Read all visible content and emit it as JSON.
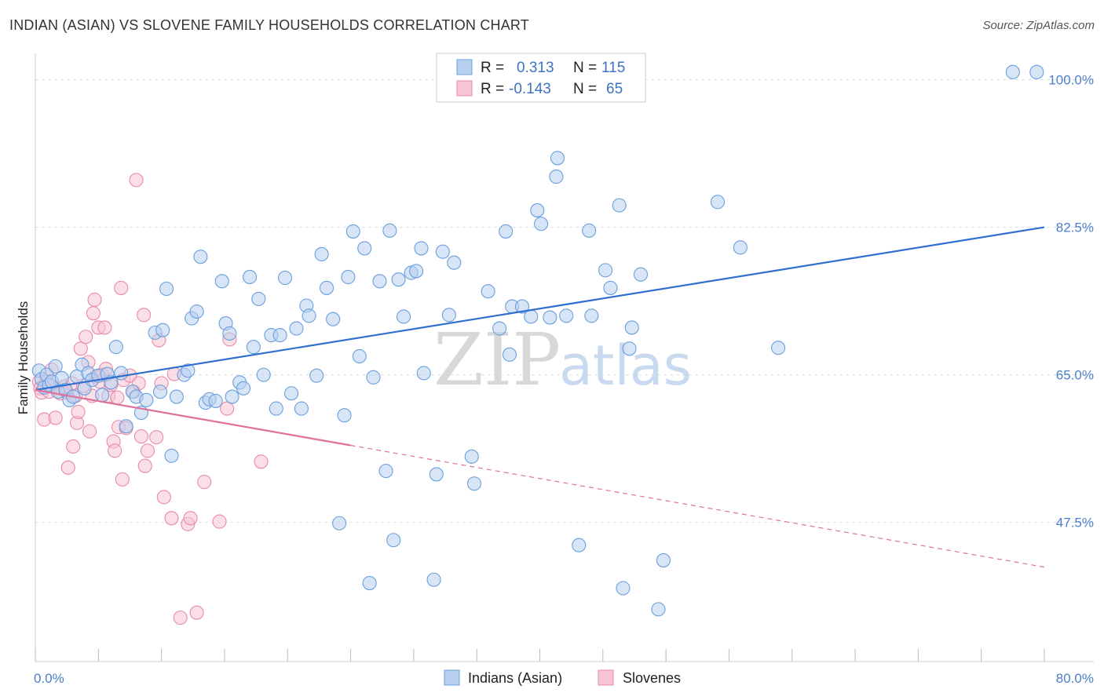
{
  "title": "INDIAN (ASIAN) VS SLOVENE FAMILY HOUSEHOLDS CORRELATION CHART",
  "source": "Source: ZipAtlas.com",
  "watermark": {
    "zip": "ZIP",
    "atlas": "atlas"
  },
  "colors": {
    "blue_fill": "#b8d0f0",
    "blue_stroke": "#6a9fdc",
    "blue_line": "#2f6fcf",
    "pink_fill": "#f7c5d3",
    "pink_stroke": "#e88aa8",
    "pink_line": "#e0719a",
    "tick_text": "#4a7fc8",
    "grid": "#dddddd"
  },
  "stats": {
    "r_label": "R =",
    "n_label": "N =",
    "blue": {
      "r": "0.313",
      "n": "115"
    },
    "pink": {
      "r": "-0.143",
      "n": "65"
    }
  },
  "chart_data": {
    "type": "scatter",
    "title": "INDIAN (ASIAN) VS SLOVENE FAMILY HOUSEHOLDS CORRELATION CHART",
    "xlabel": "",
    "ylabel": "Family Households",
    "xlim": [
      0,
      80
    ],
    "ylim": [
      31,
      102
    ],
    "x_tick_labels": [
      {
        "value": 0,
        "label": "0.0%"
      },
      {
        "value": 80,
        "label": "80.0%"
      }
    ],
    "y_ticks": [
      {
        "value": 47.5,
        "label": "47.5%"
      },
      {
        "value": 65.0,
        "label": "65.0%"
      },
      {
        "value": 82.5,
        "label": "82.5%"
      },
      {
        "value": 100.0,
        "label": "100.0%"
      }
    ],
    "grid": true,
    "legend_position": "bottom-center",
    "series": [
      {
        "name": "Indians (Asian)",
        "color": "#6a9fdc",
        "trend": {
          "x": [
            0,
            80
          ],
          "y": [
            63.2,
            82.5
          ],
          "dashed_from": null
        },
        "points": [
          [
            0.3,
            65.5
          ],
          [
            0.5,
            64.5
          ],
          [
            0.7,
            63.5
          ],
          [
            0.9,
            65.0
          ],
          [
            1.1,
            63.8
          ],
          [
            1.3,
            64.2
          ],
          [
            1.6,
            66.0
          ],
          [
            1.8,
            63.0
          ],
          [
            2.1,
            64.6
          ],
          [
            2.4,
            63.2
          ],
          [
            2.7,
            62.0
          ],
          [
            3.0,
            62.4
          ],
          [
            3.3,
            64.8
          ],
          [
            3.7,
            66.2
          ],
          [
            3.9,
            63.4
          ],
          [
            4.2,
            65.2
          ],
          [
            4.5,
            64.4
          ],
          [
            5.0,
            64.9
          ],
          [
            5.3,
            62.6
          ],
          [
            5.7,
            65.1
          ],
          [
            6.0,
            64.1
          ],
          [
            6.4,
            68.3
          ],
          [
            6.8,
            65.2
          ],
          [
            7.2,
            58.9
          ],
          [
            7.7,
            63.0
          ],
          [
            8.0,
            62.4
          ],
          [
            8.4,
            60.5
          ],
          [
            8.8,
            62.0
          ],
          [
            9.5,
            70.0
          ],
          [
            9.9,
            63.0
          ],
          [
            10.1,
            70.3
          ],
          [
            10.4,
            75.2
          ],
          [
            10.8,
            55.4
          ],
          [
            11.2,
            62.4
          ],
          [
            11.8,
            65.0
          ],
          [
            12.1,
            65.5
          ],
          [
            12.4,
            71.7
          ],
          [
            12.8,
            72.5
          ],
          [
            13.1,
            79.0
          ],
          [
            13.5,
            61.7
          ],
          [
            13.8,
            62.1
          ],
          [
            14.3,
            61.9
          ],
          [
            14.8,
            76.1
          ],
          [
            15.1,
            71.1
          ],
          [
            15.4,
            69.9
          ],
          [
            15.6,
            62.4
          ],
          [
            16.2,
            64.1
          ],
          [
            16.5,
            63.4
          ],
          [
            17.0,
            76.6
          ],
          [
            17.3,
            68.3
          ],
          [
            17.7,
            74.0
          ],
          [
            18.1,
            65.0
          ],
          [
            18.7,
            69.7
          ],
          [
            19.1,
            61.0
          ],
          [
            19.4,
            69.7
          ],
          [
            19.8,
            76.5
          ],
          [
            20.3,
            62.8
          ],
          [
            20.7,
            70.5
          ],
          [
            21.1,
            61.0
          ],
          [
            21.5,
            73.2
          ],
          [
            21.7,
            72.0
          ],
          [
            22.3,
            64.9
          ],
          [
            22.7,
            79.3
          ],
          [
            23.1,
            75.3
          ],
          [
            23.6,
            71.6
          ],
          [
            24.1,
            47.4
          ],
          [
            24.5,
            60.2
          ],
          [
            24.8,
            76.6
          ],
          [
            25.2,
            82.0
          ],
          [
            25.7,
            67.2
          ],
          [
            26.1,
            80.0
          ],
          [
            26.5,
            40.3
          ],
          [
            26.8,
            64.7
          ],
          [
            27.3,
            76.1
          ],
          [
            27.8,
            53.6
          ],
          [
            28.1,
            82.1
          ],
          [
            28.4,
            45.4
          ],
          [
            28.8,
            76.3
          ],
          [
            29.2,
            71.9
          ],
          [
            29.8,
            77.1
          ],
          [
            30.2,
            77.3
          ],
          [
            30.6,
            80.0
          ],
          [
            30.8,
            65.2
          ],
          [
            31.6,
            40.7
          ],
          [
            31.8,
            53.2
          ],
          [
            32.3,
            79.6
          ],
          [
            32.8,
            72.1
          ],
          [
            33.2,
            78.3
          ],
          [
            34.6,
            55.3
          ],
          [
            34.8,
            52.1
          ],
          [
            35.9,
            74.9
          ],
          [
            36.8,
            70.5
          ],
          [
            37.3,
            82.0
          ],
          [
            37.6,
            67.4
          ],
          [
            37.8,
            73.1
          ],
          [
            38.6,
            73.1
          ],
          [
            39.3,
            71.9
          ],
          [
            39.8,
            84.5
          ],
          [
            40.1,
            82.9
          ],
          [
            40.8,
            71.8
          ],
          [
            41.3,
            88.5
          ],
          [
            41.4,
            90.7
          ],
          [
            42.1,
            72.0
          ],
          [
            43.1,
            44.8
          ],
          [
            43.9,
            82.1
          ],
          [
            44.1,
            72.0
          ],
          [
            45.2,
            77.4
          ],
          [
            45.6,
            75.3
          ],
          [
            46.3,
            85.1
          ],
          [
            46.6,
            39.7
          ],
          [
            47.1,
            68.1
          ],
          [
            47.3,
            70.6
          ],
          [
            48.0,
            76.9
          ],
          [
            49.4,
            37.2
          ],
          [
            49.8,
            43.0
          ],
          [
            54.1,
            85.5
          ],
          [
            55.9,
            80.1
          ],
          [
            58.9,
            68.2
          ],
          [
            77.5,
            100.9
          ],
          [
            79.4,
            100.9
          ]
        ]
      },
      {
        "name": "Slovenes",
        "color": "#e88aa8",
        "trend": {
          "x": [
            0,
            80
          ],
          "y": [
            63.2,
            42.2
          ],
          "dashed_from": 25
        },
        "points": [
          [
            0.3,
            64.2
          ],
          [
            0.4,
            63.4
          ],
          [
            0.5,
            62.9
          ],
          [
            0.7,
            59.7
          ],
          [
            0.9,
            64.2
          ],
          [
            1.1,
            63.0
          ],
          [
            1.3,
            65.6
          ],
          [
            1.6,
            59.9
          ],
          [
            1.8,
            63.4
          ],
          [
            2.0,
            62.8
          ],
          [
            2.3,
            63.6
          ],
          [
            2.5,
            62.9
          ],
          [
            2.6,
            54.0
          ],
          [
            2.9,
            64.0
          ],
          [
            3.0,
            56.5
          ],
          [
            3.2,
            62.5
          ],
          [
            3.3,
            59.3
          ],
          [
            3.4,
            60.6
          ],
          [
            3.6,
            68.1
          ],
          [
            3.8,
            63.7
          ],
          [
            4.0,
            69.5
          ],
          [
            4.2,
            66.5
          ],
          [
            4.3,
            58.3
          ],
          [
            4.5,
            62.5
          ],
          [
            4.6,
            72.3
          ],
          [
            4.7,
            73.9
          ],
          [
            4.8,
            64.8
          ],
          [
            5.0,
            70.6
          ],
          [
            5.1,
            64.2
          ],
          [
            5.3,
            65.0
          ],
          [
            5.5,
            70.6
          ],
          [
            5.6,
            65.7
          ],
          [
            5.8,
            62.5
          ],
          [
            6.0,
            63.8
          ],
          [
            6.2,
            57.1
          ],
          [
            6.3,
            56.0
          ],
          [
            6.5,
            62.3
          ],
          [
            6.6,
            58.8
          ],
          [
            6.8,
            75.3
          ],
          [
            6.9,
            52.6
          ],
          [
            7.0,
            64.4
          ],
          [
            7.2,
            58.7
          ],
          [
            7.5,
            64.9
          ],
          [
            7.8,
            63.0
          ],
          [
            8.0,
            88.1
          ],
          [
            8.2,
            64.0
          ],
          [
            8.4,
            57.7
          ],
          [
            8.6,
            72.1
          ],
          [
            8.7,
            54.2
          ],
          [
            8.9,
            56.0
          ],
          [
            9.6,
            57.6
          ],
          [
            9.8,
            69.1
          ],
          [
            10.0,
            64.0
          ],
          [
            10.2,
            50.5
          ],
          [
            10.8,
            48.0
          ],
          [
            11.0,
            65.1
          ],
          [
            11.5,
            36.2
          ],
          [
            12.1,
            47.3
          ],
          [
            12.3,
            48.0
          ],
          [
            12.8,
            36.8
          ],
          [
            13.4,
            52.3
          ],
          [
            14.6,
            47.6
          ],
          [
            15.2,
            61.0
          ],
          [
            15.4,
            69.2
          ],
          [
            17.9,
            54.7
          ]
        ]
      }
    ]
  },
  "legend": {
    "items": [
      "Indians (Asian)",
      "Slovenes"
    ]
  }
}
